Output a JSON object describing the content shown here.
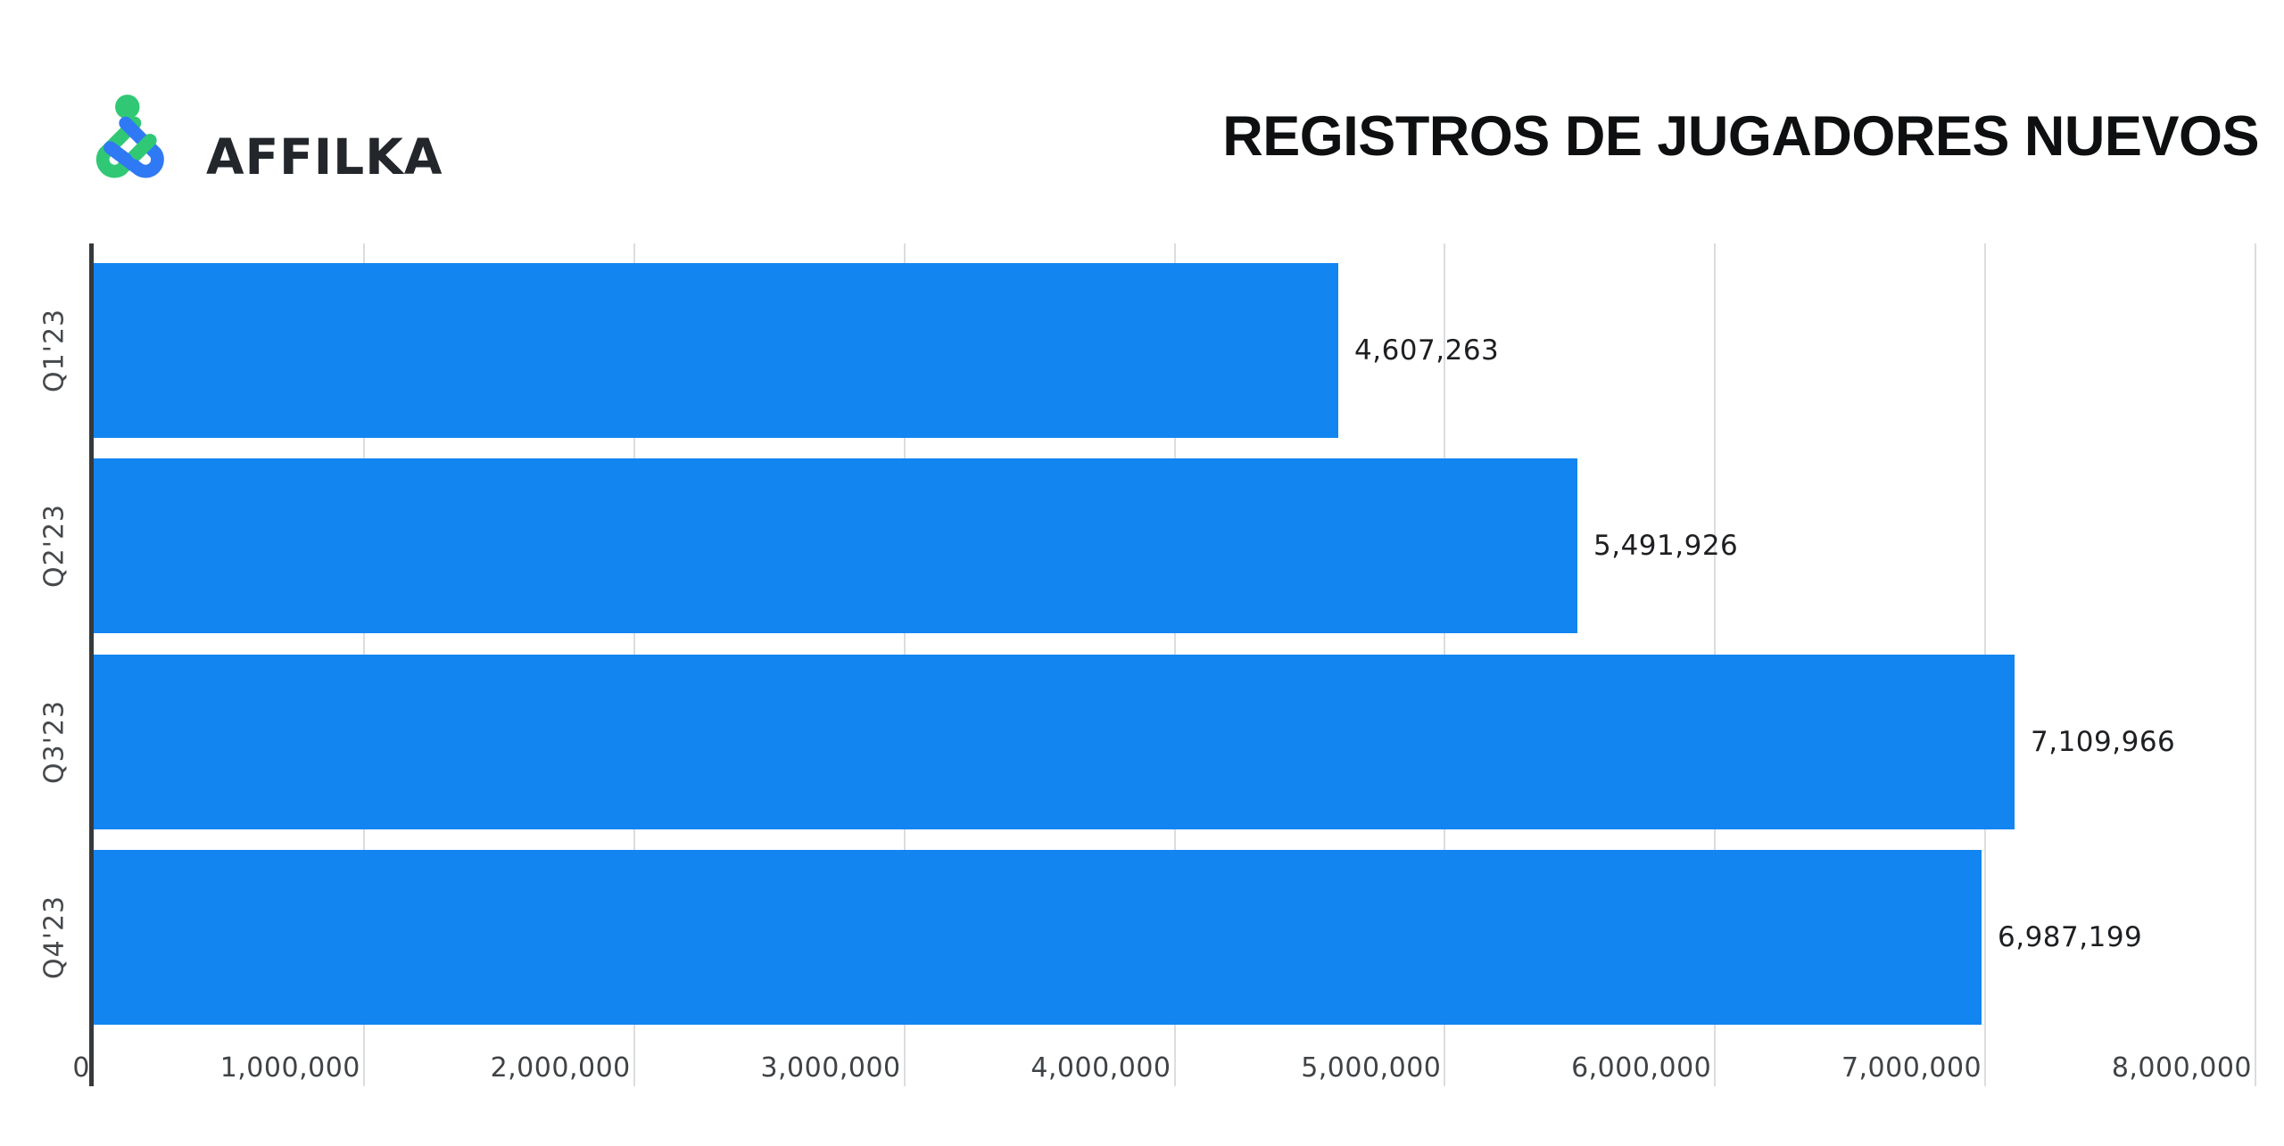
{
  "brand": {
    "wordmark": "AFFILKA",
    "logo": {
      "dot_icon": "green-dot",
      "mark_icon": "interlocked-links-monogram",
      "green": "#31c875",
      "blue": "#2f7af4"
    }
  },
  "header": {
    "title": "REGISTROS DE JUGADORES NUEVOS"
  },
  "chart_data": {
    "type": "bar",
    "orientation": "horizontal",
    "title": "REGISTROS DE JUGADORES NUEVOS",
    "xlabel": "",
    "ylabel": "",
    "categories": [
      "Q1'23",
      "Q2'23",
      "Q3'23",
      "Q4'23"
    ],
    "values": [
      4607263,
      5491926,
      7109966,
      6987199
    ],
    "value_labels": [
      "4,607,263",
      "5,491,926",
      "7,109,966",
      "6,987,199"
    ],
    "xlim": [
      0,
      8000000
    ],
    "x_ticks": [
      0,
      1000000,
      2000000,
      3000000,
      4000000,
      5000000,
      6000000,
      7000000,
      8000000
    ],
    "x_tick_labels": [
      "0",
      "1,000,000",
      "2,000,000",
      "3,000,000",
      "4,000,000",
      "5,000,000",
      "6,000,000",
      "7,000,000",
      "8,000,000"
    ],
    "grid": "vertical-only",
    "legend": "none",
    "bar_color": "#1285f1",
    "axis_line_color": "#35393c",
    "gridline_color": "#dbdddf",
    "tick_label_color": "#3f4346",
    "value_label_color": "#1d1f22"
  }
}
